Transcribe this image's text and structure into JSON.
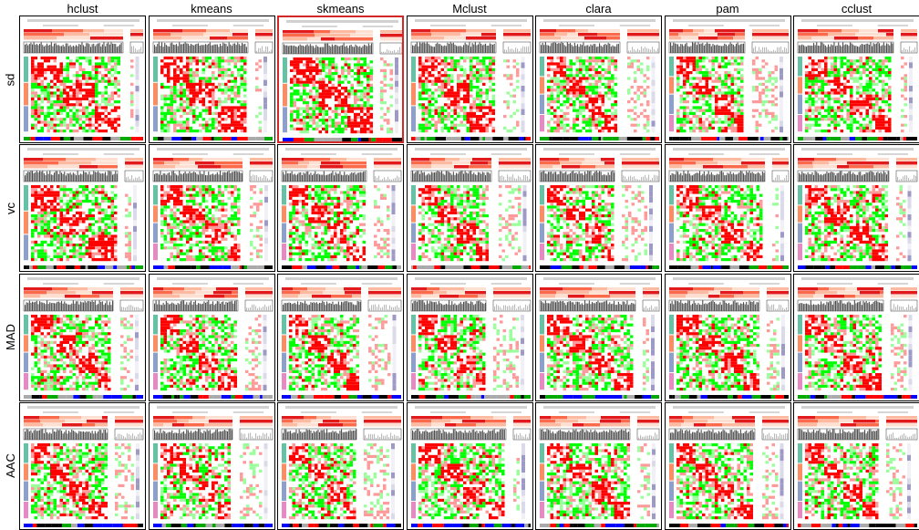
{
  "columns": [
    "hclust",
    "kmeans",
    "skmeans",
    "Mclust",
    "clara",
    "pam",
    "cclust"
  ],
  "rows": [
    "sd",
    "vc",
    "MAD",
    "AAC"
  ],
  "selected": {
    "row": "sd",
    "column": "skmeans"
  },
  "colors": {
    "heat_high": "#ff0000",
    "heat_mid": "#ffffff",
    "heat_low": "#00ff00",
    "class_1": "#66c2a5",
    "class_2": "#fc8d62",
    "class_3": "#8da0cb",
    "silhouette": "#4d4d4d",
    "selected_border": "#d62728"
  },
  "chart_data": {
    "type": "heatmap",
    "title": "",
    "xlabel": "",
    "ylabel": "",
    "layout": "grid of consensus-partition signature heatmaps",
    "panel_components": [
      "panel-caption",
      "class-bars",
      "silhouette-bars",
      "main-heatmap",
      "row-groups",
      "annotation-strip"
    ]
  }
}
